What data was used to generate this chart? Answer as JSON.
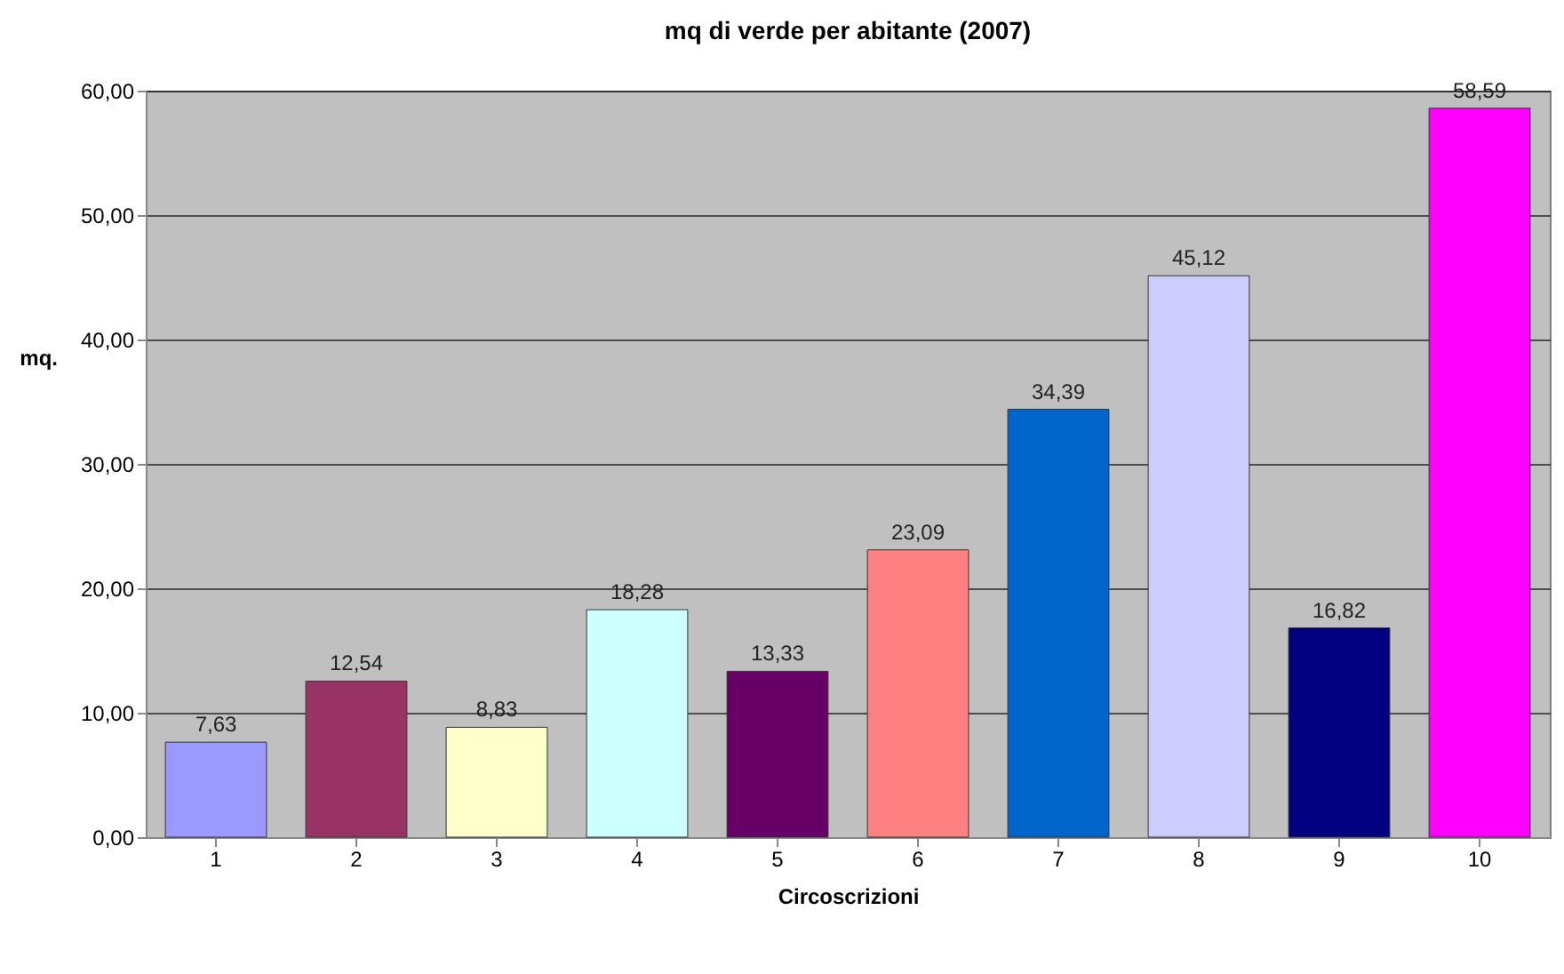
{
  "chart_data": {
    "type": "bar",
    "title": "mq di verde per abitante (2007)",
    "xlabel": "Circoscrizioni",
    "ylabel": "mq.",
    "categories": [
      "1",
      "2",
      "3",
      "4",
      "5",
      "6",
      "7",
      "8",
      "9",
      "10"
    ],
    "values": [
      7.63,
      12.54,
      8.83,
      18.28,
      13.33,
      23.09,
      34.39,
      45.12,
      16.82,
      58.59
    ],
    "value_labels": [
      "7,63",
      "12,54",
      "8,83",
      "18,28",
      "13,33",
      "23,09",
      "34,39",
      "45,12",
      "16,82",
      "58,59"
    ],
    "colors": [
      "#9999ff",
      "#993366",
      "#ffffcc",
      "#ccffff",
      "#660066",
      "#ff8080",
      "#0066cc",
      "#ccccff",
      "#000080",
      "#ff00ff"
    ],
    "ylim": [
      0,
      60
    ],
    "yticks": [
      {
        "value": 0,
        "label": "0,00"
      },
      {
        "value": 10,
        "label": "10,00"
      },
      {
        "value": 20,
        "label": "20,00"
      },
      {
        "value": 30,
        "label": "30,00"
      },
      {
        "value": 40,
        "label": "40,00"
      },
      {
        "value": 50,
        "label": "50,00"
      },
      {
        "value": 60,
        "label": "60,00"
      }
    ],
    "grid": "y",
    "legend": false
  }
}
